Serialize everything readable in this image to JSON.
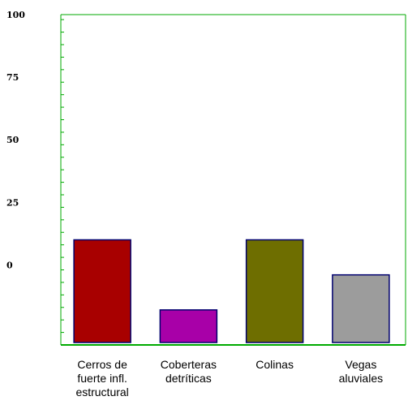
{
  "chart_data": {
    "type": "bar",
    "title": "",
    "xlabel": "",
    "ylabel": "",
    "y_tick_labels": [
      "100",
      "75",
      "50",
      "25",
      "0"
    ],
    "ylim": [
      -32,
      100
    ],
    "categories": [
      "Cerros de\nfuerte infl.\nestructural",
      "Coberteras\ndetríticas",
      "Colinas",
      "Vegas\naluviales"
    ],
    "values": [
      10,
      -18,
      10,
      -4
    ],
    "bar_colors": [
      "#a80000",
      "#a800a8",
      "#6e6e00",
      "#9c9c9c"
    ],
    "bar_border_color": "#00006e",
    "axis_color": "#00aa00",
    "grid": false
  }
}
